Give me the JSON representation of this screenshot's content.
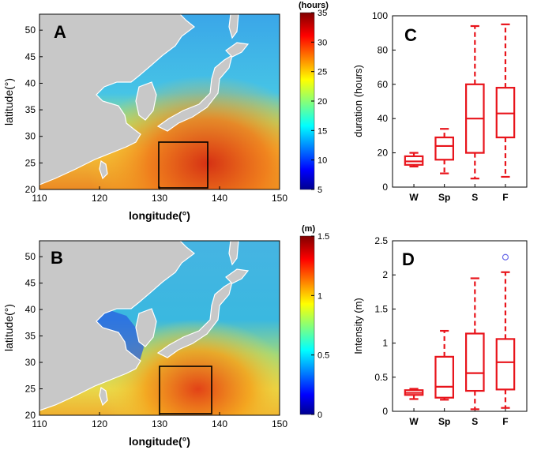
{
  "chart_data": [
    {
      "type": "heatmap",
      "panel_label": "A",
      "xlabel": "longitude(°)",
      "ylabel": "latitude(°)",
      "xlim": [
        110,
        150
      ],
      "ylim": [
        20,
        53
      ],
      "xticks": [
        "110",
        "120",
        "130",
        "140",
        "150"
      ],
      "yticks": [
        "20",
        "25",
        "30",
        "35",
        "40",
        "45",
        "50"
      ],
      "colorbar": {
        "label": "(hours)",
        "min": 5,
        "max": 35,
        "ticks": [
          "5",
          "10",
          "15",
          "20",
          "25",
          "30",
          "35"
        ]
      },
      "box_region": {
        "lon": [
          130,
          138
        ],
        "lat": [
          20,
          29
        ]
      }
    },
    {
      "type": "heatmap",
      "panel_label": "B",
      "xlabel": "longitude(°)",
      "ylabel": "latitude(°)",
      "xlim": [
        110,
        150
      ],
      "ylim": [
        20,
        53
      ],
      "xticks": [
        "110",
        "120",
        "130",
        "140",
        "150"
      ],
      "yticks": [
        "20",
        "25",
        "30",
        "35",
        "40",
        "45",
        "50"
      ],
      "colorbar": {
        "label": "(m)",
        "min": 0,
        "max": 1.5,
        "ticks": [
          "0",
          "0.5",
          "1",
          "1.5"
        ]
      },
      "box_region": {
        "lon": [
          130,
          138
        ],
        "lat": [
          20,
          29
        ]
      }
    },
    {
      "type": "box",
      "panel_label": "C",
      "ylabel": "duration (hours)",
      "ylim": [
        0,
        100
      ],
      "yticks": [
        "0",
        "20",
        "40",
        "60",
        "80",
        "100"
      ],
      "categories": [
        "W",
        "Sp",
        "S",
        "F"
      ],
      "boxes": [
        {
          "whisker_low": 12,
          "q1": 13,
          "median": 15,
          "q3": 18,
          "whisker_high": 20
        },
        {
          "whisker_low": 8,
          "q1": 16,
          "median": 24,
          "q3": 29,
          "whisker_high": 34
        },
        {
          "whisker_low": 5,
          "q1": 20,
          "median": 40,
          "q3": 60,
          "whisker_high": 94
        },
        {
          "whisker_low": 6,
          "q1": 29,
          "median": 43,
          "q3": 58,
          "whisker_high": 95
        }
      ],
      "outliers": []
    },
    {
      "type": "box",
      "panel_label": "D",
      "ylabel": "Intensity (m)",
      "ylim": [
        0,
        2.5
      ],
      "yticks": [
        "0",
        "0.5",
        "1",
        "1.5",
        "2",
        "2.5"
      ],
      "categories": [
        "W",
        "Sp",
        "S",
        "F"
      ],
      "boxes": [
        {
          "whisker_low": 0.18,
          "q1": 0.24,
          "median": 0.27,
          "q3": 0.31,
          "whisker_high": 0.33
        },
        {
          "whisker_low": 0.17,
          "q1": 0.2,
          "median": 0.36,
          "q3": 0.8,
          "whisker_high": 1.18
        },
        {
          "whisker_low": 0.03,
          "q1": 0.3,
          "median": 0.56,
          "q3": 1.14,
          "whisker_high": 1.95
        },
        {
          "whisker_low": 0.05,
          "q1": 0.32,
          "median": 0.72,
          "q3": 1.06,
          "whisker_high": 2.04
        }
      ],
      "outliers": [
        {
          "category": "F",
          "value": 2.26
        }
      ]
    }
  ],
  "colors": {
    "box_color": "#e8141b",
    "outlier_color": "#6a6ae8",
    "land_color": "#c8c8c8",
    "frame_color": "#000000"
  }
}
